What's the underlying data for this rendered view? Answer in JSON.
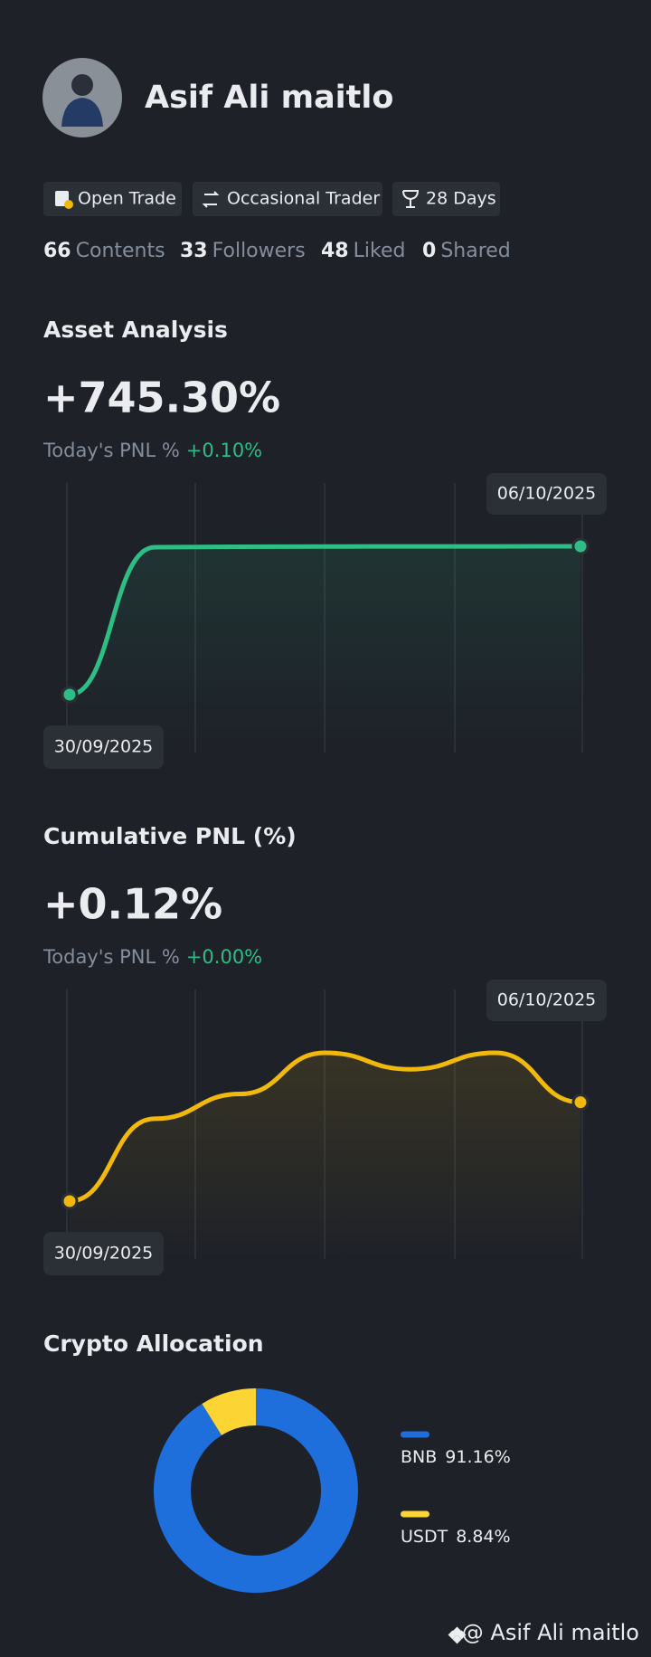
{
  "profile": {
    "name": "Asif Ali maitlo",
    "badges": [
      "Open Trade",
      "Occasional Trader",
      "28 Days"
    ],
    "stats": [
      {
        "value": 66,
        "label": "Contents"
      },
      {
        "value": 33,
        "label": "Followers"
      },
      {
        "value": 48,
        "label": "Liked"
      },
      {
        "value": 0,
        "label": "Shared"
      }
    ]
  },
  "chart_data": [
    {
      "type": "line",
      "title": "Asset Analysis",
      "value_text": "+745.30%",
      "today_label": "Today's PNL %",
      "today_value": "+0.10%",
      "categories": [
        "30/09/2025",
        null,
        null,
        null,
        null,
        null,
        "06/10/2025"
      ],
      "values": [
        0,
        741,
        743,
        744,
        745,
        745,
        745.3
      ],
      "color": "#2ebd85"
    },
    {
      "type": "line",
      "title": "Cumulative PNL (%)",
      "value_text": "+0.12%",
      "today_label": "Today's PNL %",
      "today_value": "+0.00%",
      "categories": [
        "30/09/2025",
        null,
        null,
        null,
        null,
        null,
        "06/10/2025"
      ],
      "values": [
        0,
        0.1,
        0.13,
        0.18,
        0.16,
        0.18,
        0.12
      ],
      "color": "#f0b90b"
    },
    {
      "type": "pie",
      "title": "Crypto Allocation",
      "categories": [
        "BNB",
        "USDT"
      ],
      "values": [
        91.16,
        8.84
      ],
      "value_labels": [
        "91.16%",
        "8.84%"
      ],
      "colors": [
        "#1e6fdb",
        "#fcd535"
      ]
    }
  ],
  "footer": {
    "handle": "@ Asif Ali maitlo"
  }
}
